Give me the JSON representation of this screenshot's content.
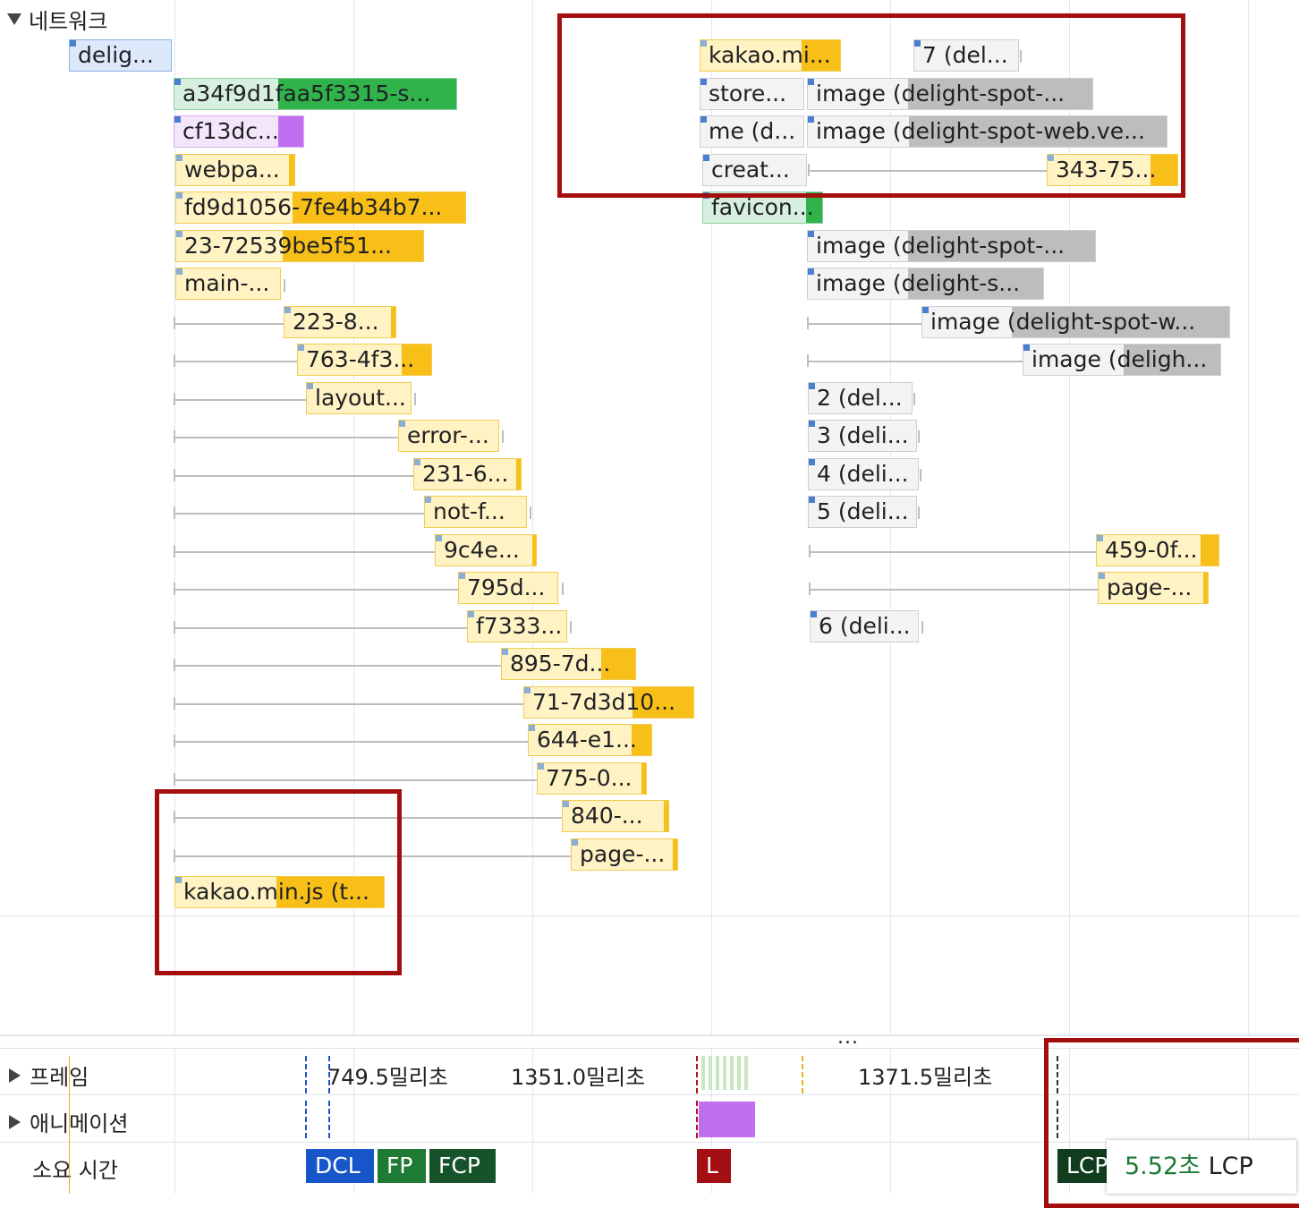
{
  "network": {
    "label": "네트워크"
  },
  "requests": [
    {
      "label": "delig...",
      "color": "blue"
    },
    {
      "label": "a34f9d1faa5f3315-s...",
      "color": "green"
    },
    {
      "label": "cf13dc...",
      "color": "purple"
    },
    {
      "label": "webpa...",
      "color": "yellow"
    },
    {
      "label": "fd9d1056-7fe4b34b7...",
      "color": "yellow"
    },
    {
      "label": "23-72539be5f51...",
      "color": "yellow"
    },
    {
      "label": "main-...",
      "color": "yellow"
    },
    {
      "label": "223-8...",
      "color": "yellow"
    },
    {
      "label": "763-4f3...",
      "color": "yellow"
    },
    {
      "label": "layout...",
      "color": "yellow"
    },
    {
      "label": "error-...",
      "color": "yellow"
    },
    {
      "label": "231-6...",
      "color": "yellow"
    },
    {
      "label": "not-f...",
      "color": "yellow"
    },
    {
      "label": "9c4e...",
      "color": "yellow"
    },
    {
      "label": "795d...",
      "color": "yellow"
    },
    {
      "label": "f7333...",
      "color": "yellow"
    },
    {
      "label": "895-7d...",
      "color": "yellow"
    },
    {
      "label": "71-7d3d10...",
      "color": "yellow"
    },
    {
      "label": "644-e1...",
      "color": "yellow"
    },
    {
      "label": "775-0...",
      "color": "yellow"
    },
    {
      "label": "840-...",
      "color": "yellow"
    },
    {
      "label": "page-...",
      "color": "yellow"
    },
    {
      "label": "kakao.min.js (t...",
      "color": "yellow"
    },
    {
      "label": "kakao.mi...",
      "color": "yellow"
    },
    {
      "label": "7 (del...",
      "color": "gray"
    },
    {
      "label": "store...",
      "color": "gray"
    },
    {
      "label": "image (delight-spot-...",
      "color": "gray"
    },
    {
      "label": "me (d...",
      "color": "gray"
    },
    {
      "label": "image (delight-spot-web.ve...",
      "color": "gray"
    },
    {
      "label": "creat...",
      "color": "gray"
    },
    {
      "label": "343-75...",
      "color": "yellow"
    },
    {
      "label": "favicon...",
      "color": "green"
    },
    {
      "label": "image (delight-spot-...",
      "color": "gray"
    },
    {
      "label": "image (delight-s...",
      "color": "gray"
    },
    {
      "label": "image (delight-spot-w...",
      "color": "gray"
    },
    {
      "label": "image (deligh...",
      "color": "gray"
    },
    {
      "label": "2 (del...",
      "color": "gray"
    },
    {
      "label": "3 (deli...",
      "color": "gray"
    },
    {
      "label": "4 (deli...",
      "color": "gray"
    },
    {
      "label": "5 (deli...",
      "color": "gray"
    },
    {
      "label": "459-0f...",
      "color": "yellow"
    },
    {
      "label": "page-...",
      "color": "yellow"
    },
    {
      "label": "6 (deli...",
      "color": "gray"
    }
  ],
  "tracks": {
    "frames": "프레임",
    "animations": "애니메이션",
    "timings": "소요 시간"
  },
  "frame_times": [
    "749.5밀리초",
    "1351.0밀리초",
    "1371.5밀리초"
  ],
  "markers": {
    "dcl": "DCL",
    "fp": "FP",
    "fcp": "FCP",
    "l": "L",
    "lcp": "LCP"
  },
  "tooltip": {
    "value": "5.52초",
    "label": "LCP"
  },
  "more": "...",
  "colors": {
    "highlight_box": "#a50e0e",
    "dcl": "#1756c9",
    "fp": "#1f7a34",
    "fcp": "#16532a",
    "l": "#a30f12",
    "lcp": "#0f3d1e"
  }
}
